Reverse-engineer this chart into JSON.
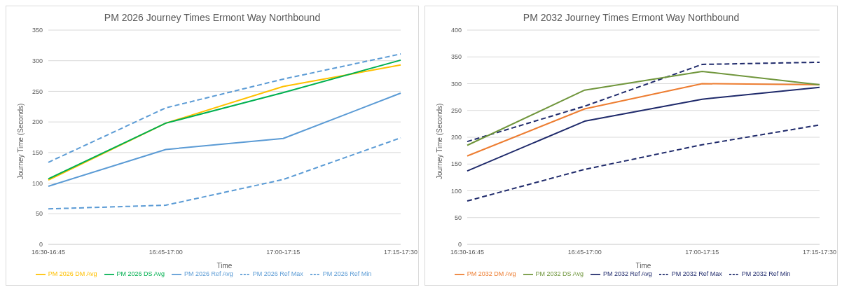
{
  "chart_data": [
    {
      "type": "line",
      "title": "PM 2026 Journey Times Ermont Way Northbound",
      "xlabel": "Time",
      "ylabel": "Journey Time (Seconds)",
      "categories": [
        "16:30-16:45",
        "16:45-17:00",
        "17:00-17:15",
        "17:15-17:30"
      ],
      "ylim": [
        0,
        350
      ],
      "yticks": [
        0,
        50,
        100,
        150,
        200,
        250,
        300,
        350
      ],
      "grid": "y",
      "legend": "bottom",
      "marker": "none",
      "series": [
        {
          "name": "PM 2026 Ref Min",
          "color": "#5b9bd5",
          "line_style": "dashed",
          "values": [
            58,
            64,
            106,
            174
          ]
        },
        {
          "name": "PM 2026 Ref Avg",
          "color": "#5b9bd5",
          "line_style": "solid",
          "values": [
            95,
            155,
            173,
            247
          ]
        },
        {
          "name": "PM 2026 Ref Max",
          "color": "#5b9bd5",
          "line_style": "dashed",
          "values": [
            134,
            223,
            270,
            311
          ]
        },
        {
          "name": "PM 2026 DM Avg",
          "color": "#ffc000",
          "line_style": "solid",
          "values": [
            105,
            198,
            258,
            293
          ]
        },
        {
          "name": "PM 2026 DS Avg",
          "color": "#00b050",
          "line_style": "solid",
          "values": [
            107,
            198,
            248,
            301
          ]
        }
      ]
    },
    {
      "type": "line",
      "title": "PM 2032 Journey Times Ermont Way Northbound",
      "xlabel": "Time",
      "ylabel": "Journey Time (Seconds)",
      "categories": [
        "16:30-16:45",
        "16:45-17:00",
        "17:00-17:15",
        "17:15-17:30"
      ],
      "ylim": [
        0,
        400
      ],
      "yticks": [
        0,
        50,
        100,
        150,
        200,
        250,
        300,
        350,
        400
      ],
      "grid": "y",
      "legend": "bottom",
      "marker": "none",
      "series": [
        {
          "name": "PM 2032 Ref Min",
          "color": "#1f2a6b",
          "line_style": "dashed",
          "values": [
            81,
            140,
            186,
            223
          ]
        },
        {
          "name": "PM 2032 Ref Avg",
          "color": "#1f2a6b",
          "line_style": "solid",
          "values": [
            137,
            230,
            271,
            293
          ]
        },
        {
          "name": "PM 2032 Ref Max",
          "color": "#1f2a6b",
          "line_style": "dashed",
          "values": [
            192,
            258,
            336,
            340
          ]
        },
        {
          "name": "PM 2032 DM Avg",
          "color": "#ed7d31",
          "line_style": "solid",
          "values": [
            165,
            253,
            300,
            298
          ]
        },
        {
          "name": "PM 2032 DS Avg",
          "color": "#70963c",
          "line_style": "solid",
          "values": [
            185,
            288,
            323,
            298
          ]
        }
      ]
    }
  ]
}
